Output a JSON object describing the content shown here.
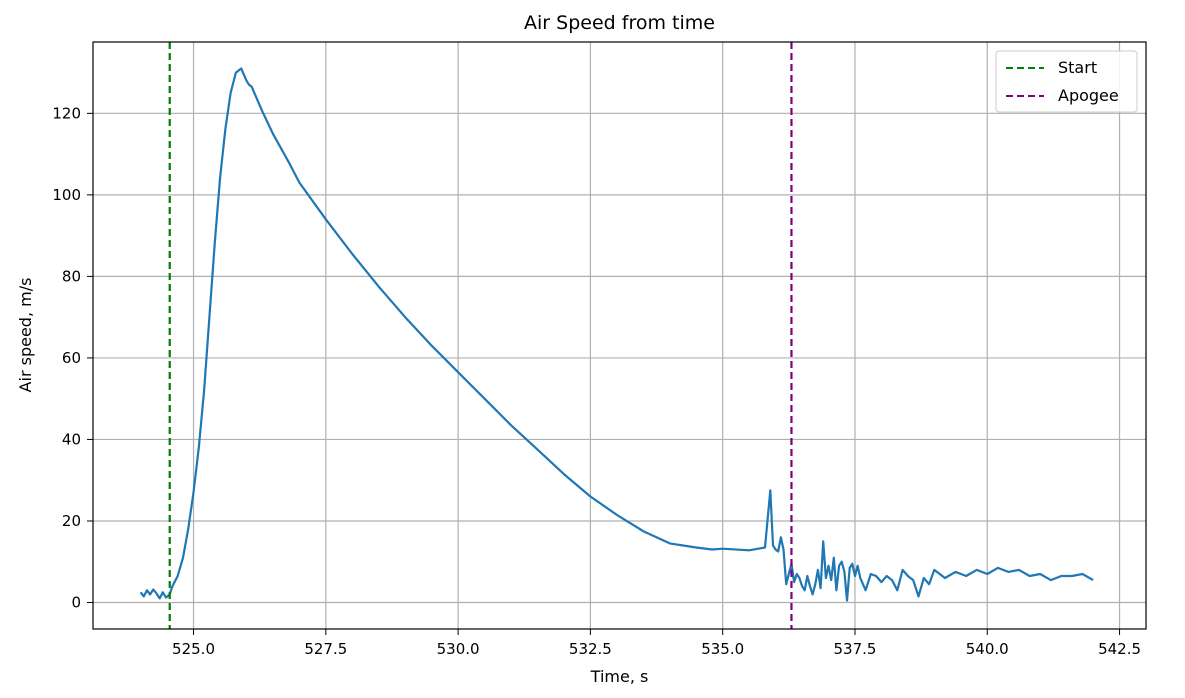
{
  "chart_data": {
    "type": "line",
    "title": "Air Speed from time",
    "xlabel": "Time, s",
    "ylabel": "Air speed, m/s",
    "xlim": [
      523.1,
      543.0
    ],
    "ylim": [
      -6.5,
      137.5
    ],
    "xticks": [
      525.0,
      527.5,
      530.0,
      532.5,
      535.0,
      537.5,
      540.0,
      542.5
    ],
    "xtick_labels": [
      "525.0",
      "527.5",
      "530.0",
      "532.5",
      "535.0",
      "537.5",
      "540.0",
      "542.5"
    ],
    "yticks": [
      0,
      20,
      40,
      60,
      80,
      100,
      120
    ],
    "ytick_labels": [
      "0",
      "20",
      "40",
      "60",
      "80",
      "100",
      "120"
    ],
    "grid": true,
    "legend_position": "top-right",
    "series": [
      {
        "color": "#1f77b4",
        "x": [
          524.0,
          524.06,
          524.12,
          524.18,
          524.24,
          524.3,
          524.36,
          524.42,
          524.48,
          524.55,
          524.6,
          524.7,
          524.8,
          524.9,
          525.0,
          525.1,
          525.2,
          525.3,
          525.4,
          525.5,
          525.6,
          525.7,
          525.8,
          525.9,
          526.0,
          526.05,
          526.1,
          526.2,
          526.3,
          526.5,
          526.8,
          527.0,
          527.5,
          528.0,
          528.5,
          529.0,
          529.5,
          530.0,
          530.5,
          531.0,
          531.5,
          532.0,
          532.5,
          533.0,
          533.5,
          534.0,
          534.5,
          534.8,
          535.0,
          535.5,
          535.8,
          535.9,
          535.95,
          536.0,
          536.05,
          536.1,
          536.15,
          536.2,
          536.25,
          536.3,
          536.35,
          536.4,
          536.45,
          536.5,
          536.55,
          536.6,
          536.65,
          536.7,
          536.75,
          536.8,
          536.85,
          536.9,
          536.95,
          537.0,
          537.05,
          537.1,
          537.15,
          537.2,
          537.25,
          537.3,
          537.35,
          537.4,
          537.45,
          537.5,
          537.55,
          537.6,
          537.7,
          537.8,
          537.9,
          538.0,
          538.1,
          538.2,
          538.3,
          538.4,
          538.5,
          538.6,
          538.7,
          538.8,
          538.9,
          539.0,
          539.2,
          539.4,
          539.6,
          539.8,
          540.0,
          540.2,
          540.4,
          540.6,
          540.8,
          541.0,
          541.2,
          541.4,
          541.6,
          541.8,
          542.0
        ],
        "y": [
          2.5,
          1.5,
          3.0,
          2.0,
          3.2,
          2.2,
          1.0,
          2.5,
          1.2,
          2.0,
          4.0,
          6.5,
          11.0,
          18.0,
          27.0,
          38.0,
          52.0,
          70.0,
          88.0,
          104.0,
          116.0,
          125.0,
          130.0,
          131.0,
          128.0,
          127.0,
          126.5,
          123.5,
          120.5,
          115.0,
          108.0,
          103.0,
          94.0,
          85.5,
          77.5,
          70.0,
          63.0,
          56.5,
          50.0,
          43.5,
          37.5,
          31.5,
          26.0,
          21.5,
          17.5,
          14.5,
          13.5,
          13.0,
          13.2,
          12.8,
          13.5,
          27.5,
          14.0,
          13.0,
          12.5,
          16.0,
          13.0,
          4.5,
          7.0,
          9.5,
          5.0,
          7.0,
          6.0,
          4.0,
          3.0,
          6.5,
          4.0,
          2.0,
          4.5,
          8.0,
          3.5,
          15.0,
          6.0,
          9.0,
          5.5,
          11.0,
          3.0,
          9.0,
          10.0,
          7.5,
          0.5,
          8.5,
          9.5,
          6.5,
          9.0,
          6.0,
          3.0,
          7.0,
          6.5,
          5.0,
          6.5,
          5.5,
          3.0,
          8.0,
          6.5,
          5.5,
          1.5,
          6.0,
          4.5,
          8.0,
          6.0,
          7.5,
          6.5,
          8.0,
          7.0,
          8.5,
          7.5,
          8.0,
          6.5,
          7.0,
          5.5,
          6.5,
          6.5,
          7.0,
          5.5
        ]
      }
    ],
    "vlines": [
      {
        "name": "Start",
        "x": 524.55,
        "color": "#008000"
      },
      {
        "name": "Apogee",
        "x": 536.3,
        "color": "#800080"
      }
    ]
  }
}
